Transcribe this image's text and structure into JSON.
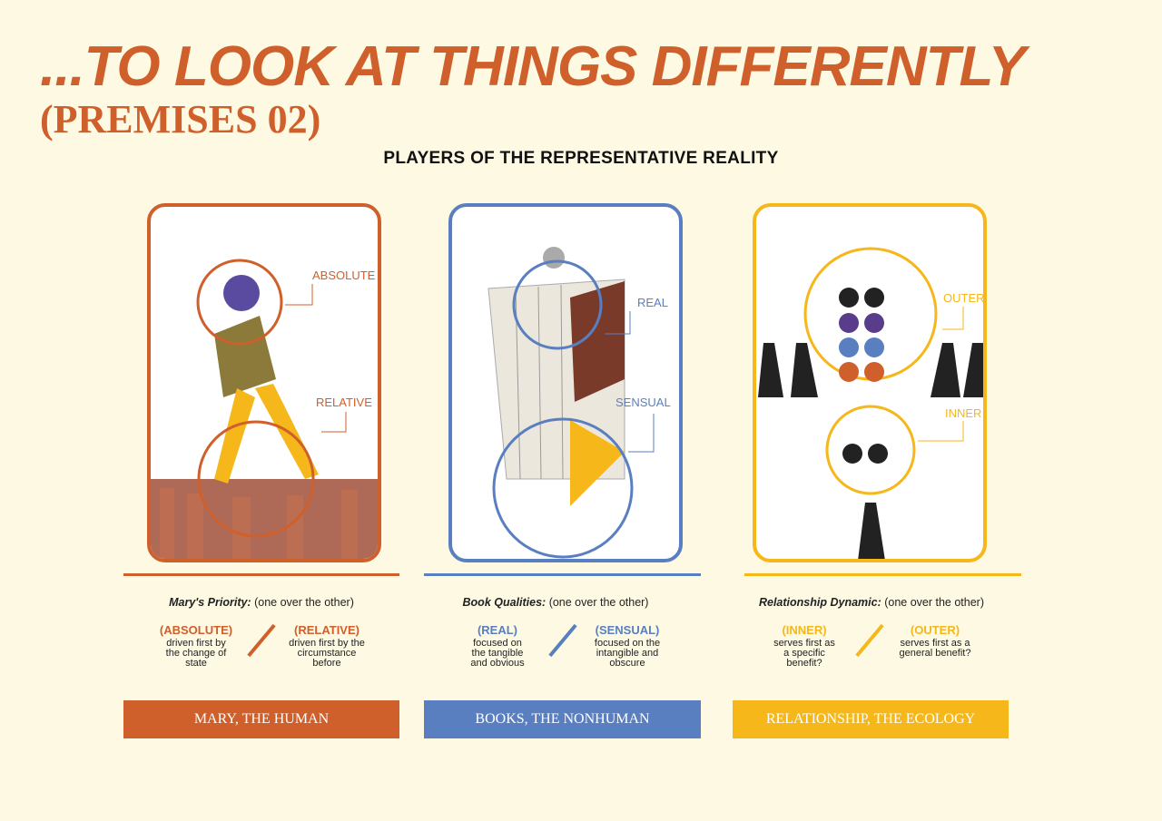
{
  "title": "...TO LOOK AT THINGS DIFFERENTLY",
  "subtitle": "(PREMISES 02)",
  "heading": "PLAYERS OF THE REPRESENTATIVE REALITY",
  "colors": {
    "background": "#fdf9e3",
    "human": "#cf5f2b",
    "nonhuman": "#5a7fc0",
    "ecology": "#f5b719"
  },
  "panels": [
    {
      "labels": [
        "ABSOLUTE",
        "RELATIVE"
      ],
      "priority_label": "Mary's Priority:",
      "priority_note": "(one over the other)",
      "options": [
        {
          "key": "(ABSOLUTE)",
          "desc": "driven first by the change of state"
        },
        {
          "key": "(RELATIVE)",
          "desc": "driven first by the circumstance before"
        }
      ],
      "button": "MARY, THE HUMAN"
    },
    {
      "labels": [
        "REAL",
        "SENSUAL"
      ],
      "priority_label": "Book Qualities:",
      "priority_note": "(one over the other)",
      "options": [
        {
          "key": "(REAL)",
          "desc": "focused on the tangible and obvious"
        },
        {
          "key": "(SENSUAL)",
          "desc": "focused on the intangible and obscure"
        }
      ],
      "button": "BOOKS, THE NONHUMAN"
    },
    {
      "labels": [
        "OUTER",
        "INNER"
      ],
      "priority_label": "Relationship Dynamic:",
      "priority_note": "(one over the other)",
      "options": [
        {
          "key": "(INNER)",
          "desc": "serves first as a specific benefit?"
        },
        {
          "key": "(OUTER)",
          "desc": "serves first as a general benefit?"
        }
      ],
      "button": "RELATIONSHIP, THE ECOLOGY"
    }
  ]
}
